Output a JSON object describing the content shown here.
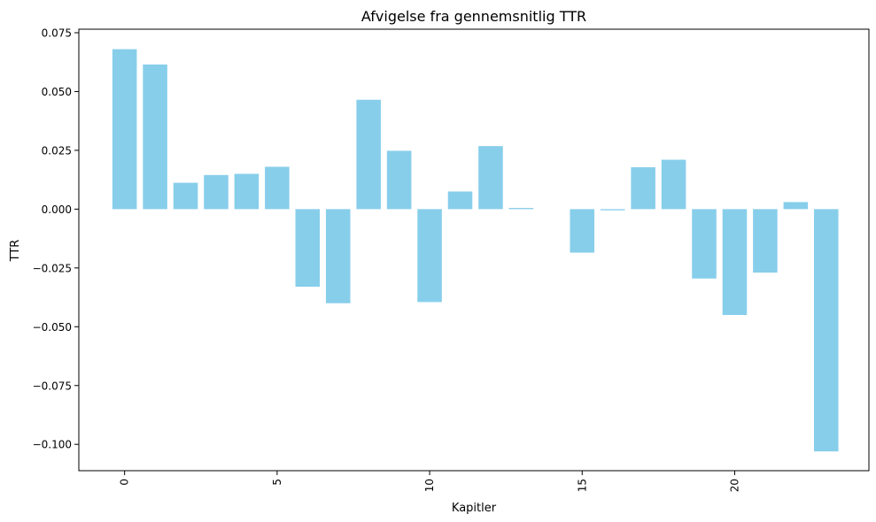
{
  "chart_data": {
    "type": "bar",
    "title": "Afvigelse fra gennemsnitlig TTR",
    "xlabel": "Kapitler",
    "ylabel": "TTR",
    "x": [
      0,
      1,
      2,
      3,
      4,
      5,
      6,
      7,
      8,
      9,
      10,
      11,
      12,
      13,
      14,
      15,
      16,
      17,
      18,
      19,
      20,
      21,
      22,
      23
    ],
    "values": [
      0.068,
      0.0615,
      0.0112,
      0.0145,
      0.015,
      0.018,
      -0.033,
      -0.04,
      0.0465,
      0.0248,
      -0.0395,
      0.0075,
      0.0268,
      0.0005,
      0.0,
      -0.0185,
      -0.0005,
      0.0178,
      0.021,
      -0.0295,
      -0.045,
      -0.027,
      0.003,
      -0.103
    ],
    "xlim": [
      -1.5,
      24.4
    ],
    "ylim": [
      -0.1112,
      0.0765
    ],
    "xticks": [
      0,
      5,
      10,
      15,
      20
    ],
    "xtick_labels": [
      "0",
      "5",
      "10",
      "15",
      "20"
    ],
    "yticks": [
      0.075,
      0.05,
      0.025,
      0.0,
      -0.025,
      -0.05,
      -0.075,
      -0.1
    ],
    "ytick_labels": [
      "0.075",
      "0.050",
      "0.025",
      "0.000",
      "−0.025",
      "−0.050",
      "−0.075",
      "−0.100"
    ],
    "bar_color": "#87ceeb",
    "grid": false,
    "legend": "none"
  }
}
